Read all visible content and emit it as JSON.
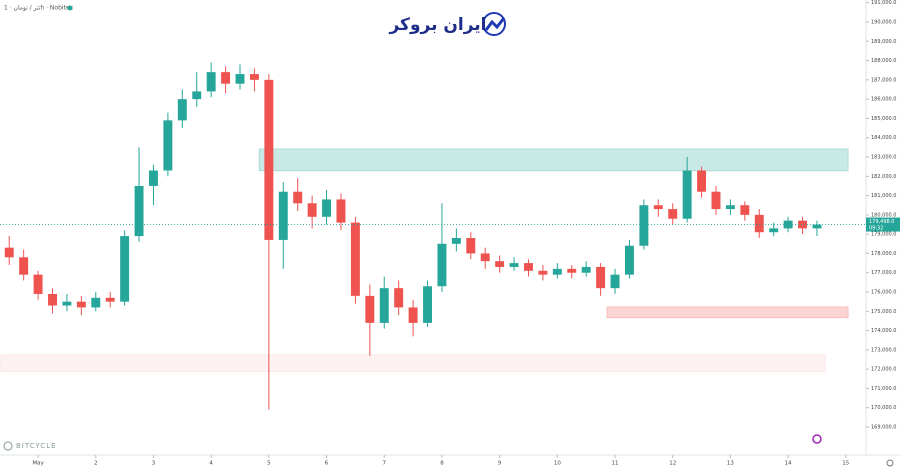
{
  "chart_data": {
    "type": "candlestick",
    "symbol_label": "تتر / تومان · 1h · Nobitex",
    "brand": "ایران بروکر",
    "watermark": "BITCYCLE",
    "x": [
      0.5,
      0.75,
      1,
      1.25,
      1.5,
      1.75,
      2,
      2.25,
      2.5,
      2.75,
      3,
      3.25,
      3.5,
      3.75,
      4,
      4.25,
      4.5,
      4.75,
      5,
      5.25,
      5.5,
      5.75,
      6,
      6.25,
      6.5,
      6.75,
      7,
      7.25,
      7.5,
      7.75,
      8,
      8.25,
      8.5,
      8.75,
      9,
      9.25,
      9.5,
      9.75,
      10,
      10.25,
      10.5,
      10.75,
      11,
      11.25,
      11.5,
      11.75,
      12,
      12.25,
      12.5,
      12.75,
      13,
      13.25,
      13.5,
      13.75,
      14,
      14.25,
      14.5
    ],
    "open": [
      178300,
      177800,
      176900,
      175900,
      175300,
      175500,
      175200,
      175700,
      175500,
      178900,
      181500,
      182300,
      184900,
      186000,
      186400,
      187400,
      186800,
      187300,
      187000,
      178700,
      181200,
      180600,
      179900,
      180800,
      179600,
      175800,
      174400,
      176200,
      175200,
      174400,
      176300,
      178500,
      178800,
      178000,
      177600,
      177300,
      177500,
      177100,
      176900,
      177200,
      177000,
      177300,
      176200,
      176900,
      178400,
      180500,
      180300,
      179800,
      182300,
      181200,
      180300,
      180500,
      180000,
      179100,
      179300,
      179700,
      179300
    ],
    "high": [
      178900,
      178200,
      177100,
      176200,
      175900,
      175800,
      176000,
      176000,
      179200,
      183500,
      182600,
      185300,
      186500,
      187400,
      187900,
      187700,
      187800,
      187600,
      187300,
      181700,
      181900,
      181000,
      181300,
      181100,
      179900,
      176400,
      176800,
      176600,
      175600,
      176600,
      180600,
      179300,
      179100,
      178300,
      177900,
      177800,
      177700,
      177400,
      177500,
      177400,
      177600,
      177500,
      177200,
      178700,
      180800,
      180800,
      180600,
      183000,
      182500,
      181500,
      180800,
      180700,
      180300,
      179600,
      179900,
      179900,
      179700
    ],
    "low": [
      177400,
      176600,
      175600,
      174900,
      175000,
      174800,
      175000,
      175200,
      175300,
      178600,
      180500,
      182000,
      184500,
      185600,
      186100,
      186300,
      186500,
      186400,
      169900,
      177200,
      180200,
      179300,
      179500,
      179200,
      175400,
      172700,
      174100,
      174800,
      173700,
      174200,
      176000,
      178100,
      177700,
      177200,
      177000,
      177100,
      176800,
      176600,
      176700,
      176700,
      176800,
      175800,
      175900,
      176700,
      178200,
      179900,
      179500,
      179600,
      180900,
      180000,
      180000,
      179700,
      178800,
      178900,
      179100,
      179000,
      178900
    ],
    "close": [
      177800,
      176900,
      175900,
      175300,
      175500,
      175200,
      175700,
      175500,
      178900,
      181500,
      182300,
      184900,
      186000,
      186400,
      187400,
      186800,
      187300,
      187000,
      178700,
      181200,
      180600,
      179900,
      180800,
      179600,
      175800,
      174400,
      176200,
      175200,
      174400,
      176300,
      178500,
      178800,
      178000,
      177600,
      177300,
      177500,
      177100,
      176900,
      177200,
      177000,
      177300,
      176200,
      176900,
      178400,
      180500,
      180300,
      179800,
      182300,
      181200,
      180300,
      180500,
      180000,
      179100,
      179300,
      179700,
      179300,
      179498
    ],
    "up_color": "#26a69a",
    "down_color": "#ef5350",
    "last_price": {
      "value": 179498,
      "label": "179,498.0",
      "countdown": "09:32"
    },
    "zones": [
      {
        "x0": 4.83,
        "x1": 15.04,
        "low": 182280,
        "high": 183420,
        "color": "#26a69a"
      },
      {
        "x0": 10.86,
        "x1": 15.04,
        "low": 174660,
        "high": 175230,
        "color": "#ef5350"
      },
      {
        "x0": 0.34,
        "x1": 14.65,
        "low": 171860,
        "high": 172740,
        "color": "#f8c8cc"
      }
    ],
    "xlim": [
      0.34,
      15.35
    ],
    "xticks": [
      {
        "value": 1,
        "label": "May"
      },
      2,
      3,
      4,
      5,
      6,
      7,
      8,
      9,
      10,
      11,
      12,
      13,
      14,
      15
    ],
    "ylim": [
      167550,
      191140
    ],
    "yticks": [
      {
        "value": 169000,
        "label": "169,000.0"
      },
      {
        "value": 170000,
        "label": "170,000.0"
      },
      {
        "value": 171000,
        "label": "171,000.0"
      },
      {
        "value": 172000,
        "label": "172,000.0"
      },
      {
        "value": 173000,
        "label": "173,000.0"
      },
      {
        "value": 174000,
        "label": "174,000.0"
      },
      {
        "value": 175000,
        "label": "175,000.0"
      },
      {
        "value": 176000,
        "label": "176,000.0"
      },
      {
        "value": 177000,
        "label": "177,000.0"
      },
      {
        "value": 178000,
        "label": "178,000.0"
      },
      {
        "value": 179000,
        "label": "179,000.0"
      },
      {
        "value": 180000,
        "label": "180,000.0"
      },
      {
        "value": 181000,
        "label": "181,000.0"
      },
      {
        "value": 182000,
        "label": "182,000.0"
      },
      {
        "value": 183000,
        "label": "183,000.0"
      },
      {
        "value": 184000,
        "label": "184,000.0"
      },
      {
        "value": 185000,
        "label": "185,000.0"
      },
      {
        "value": 186000,
        "label": "186,000.0"
      },
      {
        "value": 187000,
        "label": "187,000.0"
      },
      {
        "value": 188000,
        "label": "188,000.0"
      },
      {
        "value": 189000,
        "label": "189,000.0"
      },
      {
        "value": 190000,
        "label": "190,000.0"
      },
      {
        "value": 191000,
        "label": "191,000.0"
      }
    ],
    "grid": false
  }
}
